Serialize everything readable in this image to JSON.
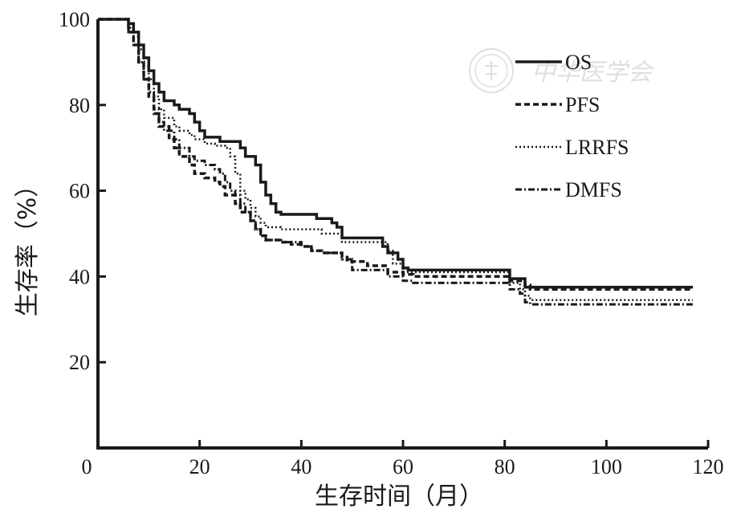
{
  "chart_data": {
    "type": "line",
    "title": "",
    "xlabel": "生存时间（月）",
    "ylabel": "生存率（%）",
    "xlim": [
      0,
      120
    ],
    "ylim": [
      0,
      100
    ],
    "x_ticks": [
      0,
      20,
      40,
      60,
      80,
      100,
      120
    ],
    "y_ticks": [
      20,
      40,
      60,
      80,
      100
    ],
    "legend_position": "top-right",
    "grid": false,
    "series": [
      {
        "name": "OS",
        "line_style": "solid",
        "color": "#1a1a1a",
        "points": [
          [
            0,
            100
          ],
          [
            5,
            100
          ],
          [
            6,
            99
          ],
          [
            7,
            97
          ],
          [
            8,
            94
          ],
          [
            9,
            91
          ],
          [
            10,
            88
          ],
          [
            11,
            85
          ],
          [
            12,
            83
          ],
          [
            13,
            81
          ],
          [
            15,
            80
          ],
          [
            16,
            79
          ],
          [
            18,
            78
          ],
          [
            19,
            76
          ],
          [
            20,
            74
          ],
          [
            21,
            72.5
          ],
          [
            23,
            72.5
          ],
          [
            24,
            71.5
          ],
          [
            27,
            71.5
          ],
          [
            28,
            70
          ],
          [
            29,
            68
          ],
          [
            31,
            66
          ],
          [
            32,
            62
          ],
          [
            33,
            59
          ],
          [
            34,
            57
          ],
          [
            35,
            55
          ],
          [
            36,
            54.5
          ],
          [
            42,
            54.5
          ],
          [
            43,
            53.5
          ],
          [
            45,
            53.5
          ],
          [
            46,
            52.5
          ],
          [
            47,
            51.5
          ],
          [
            48,
            49
          ],
          [
            55,
            49
          ],
          [
            56,
            47
          ],
          [
            57,
            45.5
          ],
          [
            59,
            44
          ],
          [
            60,
            42
          ],
          [
            61,
            41.5
          ],
          [
            80,
            41.5
          ],
          [
            81,
            39.5
          ],
          [
            83,
            39.5
          ],
          [
            84,
            37.5
          ],
          [
            117,
            37.5
          ]
        ]
      },
      {
        "name": "PFS",
        "line_style": "dashed",
        "color": "#1a1a1a",
        "points": [
          [
            0,
            100
          ],
          [
            5,
            100
          ],
          [
            6,
            97
          ],
          [
            7,
            94
          ],
          [
            8,
            90
          ],
          [
            9,
            86
          ],
          [
            10,
            82
          ],
          [
            11,
            78
          ],
          [
            12,
            75
          ],
          [
            14,
            72
          ],
          [
            15,
            70
          ],
          [
            16,
            68
          ],
          [
            18,
            66
          ],
          [
            19,
            64
          ],
          [
            21,
            63
          ],
          [
            23,
            62
          ],
          [
            24,
            61
          ],
          [
            25,
            59
          ],
          [
            27,
            57
          ],
          [
            28,
            55
          ],
          [
            30,
            53
          ],
          [
            31,
            51
          ],
          [
            32,
            49.5
          ],
          [
            33,
            48.5
          ],
          [
            36,
            48
          ],
          [
            38,
            47.5
          ],
          [
            40,
            47
          ],
          [
            42,
            46
          ],
          [
            44,
            45.5
          ],
          [
            48,
            44.5
          ],
          [
            49,
            43.5
          ],
          [
            52,
            43.5
          ],
          [
            53,
            42.5
          ],
          [
            56,
            42.5
          ],
          [
            57,
            41
          ],
          [
            60,
            40.5
          ],
          [
            62,
            40
          ],
          [
            80,
            40
          ],
          [
            81,
            39
          ],
          [
            84,
            38
          ],
          [
            85,
            37
          ],
          [
            117,
            37
          ]
        ]
      },
      {
        "name": "LRRFS",
        "line_style": "dotted",
        "color": "#1a1a1a",
        "points": [
          [
            0,
            100
          ],
          [
            5,
            100
          ],
          [
            6,
            98
          ],
          [
            7,
            96
          ],
          [
            8,
            93
          ],
          [
            9,
            89
          ],
          [
            10,
            86
          ],
          [
            11,
            82
          ],
          [
            12,
            79
          ],
          [
            13,
            77
          ],
          [
            15,
            75
          ],
          [
            16,
            74
          ],
          [
            18,
            73
          ],
          [
            19,
            72
          ],
          [
            21,
            71
          ],
          [
            23,
            70.5
          ],
          [
            25,
            70
          ],
          [
            26,
            68
          ],
          [
            27,
            64
          ],
          [
            28,
            60
          ],
          [
            29,
            58
          ],
          [
            30,
            56
          ],
          [
            31,
            54
          ],
          [
            32,
            52.5
          ],
          [
            33,
            51.5
          ],
          [
            36,
            51
          ],
          [
            43,
            51
          ],
          [
            44,
            50
          ],
          [
            47,
            50
          ],
          [
            48,
            48
          ],
          [
            56,
            48
          ],
          [
            57,
            46
          ],
          [
            58,
            43
          ],
          [
            60,
            41
          ],
          [
            80,
            41
          ],
          [
            81,
            38.5
          ],
          [
            83,
            37
          ],
          [
            84,
            35.5
          ],
          [
            85,
            34.5
          ],
          [
            117,
            34.5
          ]
        ]
      },
      {
        "name": "DMFS",
        "line_style": "dash-dot",
        "color": "#1a1a1a",
        "points": [
          [
            0,
            100
          ],
          [
            5,
            100
          ],
          [
            6,
            97
          ],
          [
            7,
            94
          ],
          [
            8,
            90
          ],
          [
            9,
            86
          ],
          [
            10,
            83
          ],
          [
            11,
            79
          ],
          [
            12,
            76
          ],
          [
            13,
            74
          ],
          [
            15,
            72
          ],
          [
            16,
            70
          ],
          [
            18,
            68
          ],
          [
            19,
            67
          ],
          [
            21,
            66
          ],
          [
            23,
            65
          ],
          [
            24,
            64
          ],
          [
            25,
            62
          ],
          [
            26,
            60
          ],
          [
            27,
            59
          ],
          [
            28,
            57
          ],
          [
            29,
            55
          ],
          [
            30,
            53
          ],
          [
            31,
            51
          ],
          [
            32,
            49.5
          ],
          [
            33,
            48.5
          ],
          [
            36,
            48
          ],
          [
            40,
            47
          ],
          [
            42,
            46
          ],
          [
            44,
            45.5
          ],
          [
            48,
            44
          ],
          [
            50,
            41.5
          ],
          [
            56,
            41.5
          ],
          [
            57,
            40
          ],
          [
            60,
            39
          ],
          [
            62,
            38.5
          ],
          [
            80,
            38.5
          ],
          [
            81,
            37
          ],
          [
            83,
            36
          ],
          [
            84,
            34
          ],
          [
            85,
            33.5
          ],
          [
            117,
            33.5
          ]
        ]
      }
    ]
  },
  "watermark": {
    "text": "中华医学会",
    "icon": "society-seal-icon"
  }
}
